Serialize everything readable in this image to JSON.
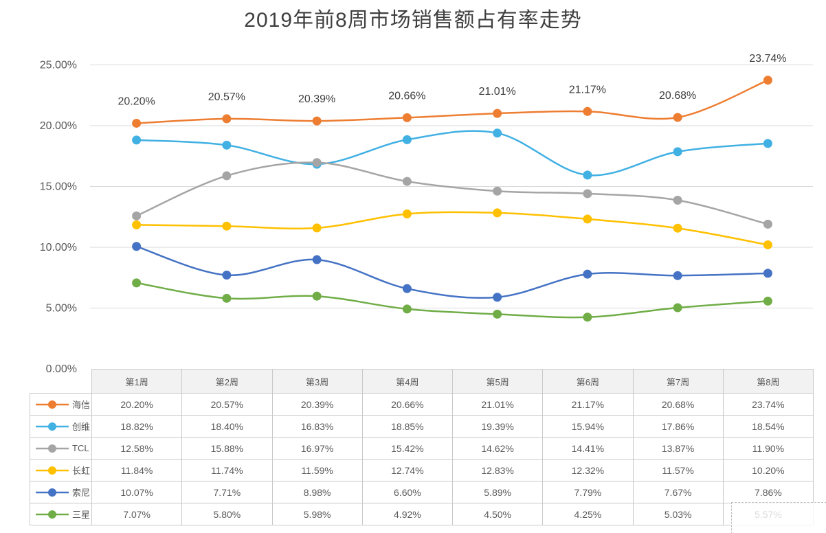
{
  "title": "2019年前8周市场销售额占有率走势",
  "chart_data": {
    "type": "line",
    "smooth": true,
    "grid": true,
    "legend_position": "data-table-keys-left",
    "title": "2019年前8周市场销售额占有率走势",
    "xlabel": "",
    "ylabel": "",
    "ylim": [
      0,
      25
    ],
    "y_axis": {
      "ticks": [
        {
          "label": "25.00%",
          "value": 25
        },
        {
          "label": "20.00%",
          "value": 20
        },
        {
          "label": "15.00%",
          "value": 15
        },
        {
          "label": "10.00%",
          "value": 10
        },
        {
          "label": "5.00%",
          "value": 5
        },
        {
          "label": "0.00%",
          "value": 0
        }
      ]
    },
    "categories": [
      "第1周",
      "第2周",
      "第3周",
      "第4周",
      "第5周",
      "第6周",
      "第7周",
      "第8周"
    ],
    "series": [
      {
        "name": "海信",
        "color": "#ED7D31",
        "show_labels": true,
        "values": [
          20.2,
          20.57,
          20.39,
          20.66,
          21.01,
          21.17,
          20.68,
          23.74
        ],
        "labels": [
          "20.20%",
          "20.57%",
          "20.39%",
          "20.66%",
          "21.01%",
          "21.17%",
          "20.68%",
          "23.74%"
        ]
      },
      {
        "name": "创维",
        "color": "#41B0E3",
        "show_labels": false,
        "values": [
          18.82,
          18.4,
          16.83,
          18.85,
          19.39,
          15.94,
          17.86,
          18.54
        ]
      },
      {
        "name": "TCL",
        "color": "#A5A5A5",
        "show_labels": false,
        "values": [
          12.58,
          15.88,
          16.97,
          15.42,
          14.62,
          14.41,
          13.87,
          11.9
        ]
      },
      {
        "name": "长虹",
        "color": "#FFC000",
        "show_labels": false,
        "values": [
          11.84,
          11.74,
          11.59,
          12.74,
          12.83,
          12.32,
          11.57,
          10.2
        ]
      },
      {
        "name": "索尼",
        "color": "#4472C4",
        "show_labels": false,
        "values": [
          10.07,
          7.71,
          8.98,
          6.6,
          5.89,
          7.79,
          7.67,
          7.86
        ]
      },
      {
        "name": "三星",
        "color": "#70AD47",
        "show_labels": false,
        "values": [
          7.07,
          5.8,
          5.98,
          4.92,
          4.5,
          4.25,
          5.03,
          5.57
        ]
      }
    ]
  },
  "table": {
    "corner": "",
    "headers": [
      "第1周",
      "第2周",
      "第3周",
      "第4周",
      "第5周",
      "第6周",
      "第7周",
      "第8周"
    ],
    "rows": [
      {
        "name": "海信",
        "cells": [
          "20.20%",
          "20.57%",
          "20.39%",
          "20.66%",
          "21.01%",
          "21.17%",
          "20.68%",
          "23.74%"
        ]
      },
      {
        "name": "创维",
        "cells": [
          "18.82%",
          "18.40%",
          "16.83%",
          "18.85%",
          "19.39%",
          "15.94%",
          "17.86%",
          "18.54%"
        ]
      },
      {
        "name": "TCL",
        "cells": [
          "12.58%",
          "15.88%",
          "16.97%",
          "15.42%",
          "14.62%",
          "14.41%",
          "13.87%",
          "11.90%"
        ]
      },
      {
        "name": "长虹",
        "cells": [
          "11.84%",
          "11.74%",
          "11.59%",
          "12.74%",
          "12.83%",
          "12.32%",
          "11.57%",
          "10.20%"
        ]
      },
      {
        "name": "索尼",
        "cells": [
          "10.07%",
          "7.71%",
          "8.98%",
          "6.60%",
          "5.89%",
          "7.79%",
          "7.67%",
          "7.86%"
        ]
      },
      {
        "name": "三星",
        "cells": [
          "7.07%",
          "5.80%",
          "5.98%",
          "4.92%",
          "4.50%",
          "4.25%",
          "5.03%",
          "5.57%"
        ]
      }
    ]
  }
}
